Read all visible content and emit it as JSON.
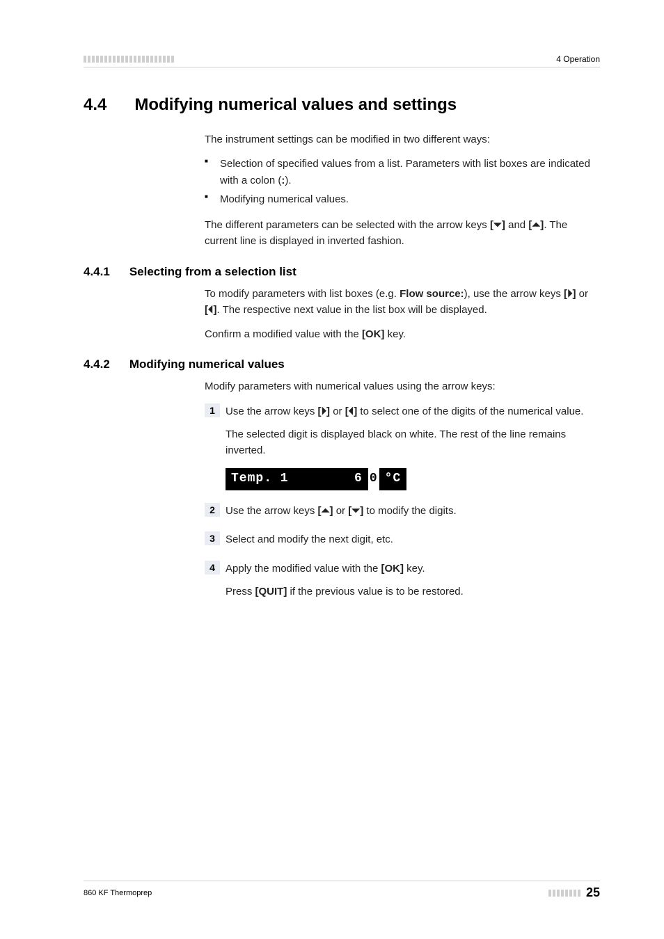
{
  "header": {
    "right": "4 Operation"
  },
  "section": {
    "num": "4.4",
    "title": "Modifying numerical values and settings",
    "intro": "The instrument settings can be modified in two different ways:",
    "bullets": [
      {
        "pre": "Selection of specified values from a list. Parameters with list boxes are indicated with a colon (",
        "bold": ":",
        "post": ")."
      },
      {
        "pre": "Modifying numerical values.",
        "bold": "",
        "post": ""
      }
    ],
    "para2_pre": "The different parameters can be selected with the arrow keys ",
    "para2_b1": "[⏷]",
    "para2_mid": " and ",
    "para2_b2": "[⏶]",
    "para2_post": ". The current line is displayed in inverted fashion."
  },
  "sub1": {
    "num": "4.4.1",
    "title": "Selecting from a selection list",
    "p1_pre": "To modify parameters with list boxes (e.g. ",
    "p1_b1": "Flow source:",
    "p1_mid": "), use the arrow keys ",
    "p1_b2": "[⏵]",
    "p1_or": " or ",
    "p1_b3": "[⏴]",
    "p1_post": ". The respective next value in the list box will be displayed.",
    "p2_pre": "Confirm a modified value with the ",
    "p2_b1": "[OK]",
    "p2_post": " key."
  },
  "sub2": {
    "num": "4.4.2",
    "title": "Modifying numerical values",
    "intro": "Modify parameters with numerical values using the arrow keys:",
    "steps": {
      "s1": {
        "num": "1",
        "p1_pre": "Use the arrow keys ",
        "p1_b1": "[⏵]",
        "p1_or": " or ",
        "p1_b2": "[⏴]",
        "p1_post": " to select one of the digits of the numerical value.",
        "p2": "The selected digit is displayed black on white. The rest of the line remains inverted.",
        "lcd_inv1": "Temp. 1",
        "lcd_inv2_pre": "        6",
        "lcd_norm": "0",
        "lcd_inv3": " °C"
      },
      "s2": {
        "num": "2",
        "p1_pre": "Use the arrow keys ",
        "p1_b1": "[⏶]",
        "p1_or": " or ",
        "p1_b2": "[⏷]",
        "p1_post": " to modify the digits."
      },
      "s3": {
        "num": "3",
        "p1": "Select and modify the next digit, etc."
      },
      "s4": {
        "num": "4",
        "p1_pre": "Apply the modified value with the ",
        "p1_b1": "[OK]",
        "p1_post": " key.",
        "p2_pre": "Press ",
        "p2_b1": "[QUIT]",
        "p2_post": " if the previous value is to be restored."
      }
    }
  },
  "footer": {
    "left": "860 KF Thermoprep",
    "page": "25"
  }
}
